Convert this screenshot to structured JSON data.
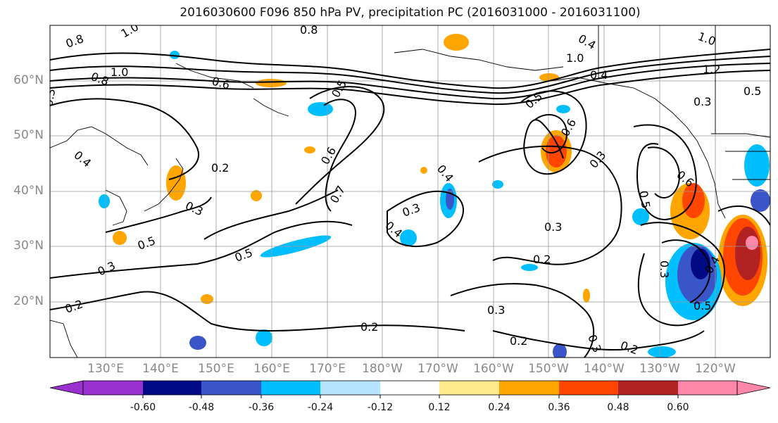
{
  "title": "2016030600 F096 850 hPa PV, precipitation PC (2016031000 - 2016031100)",
  "lat_labels": [
    "60°N",
    "50°N",
    "40°N",
    "30°N",
    "20°N"
  ],
  "lon_labels": [
    "130°E",
    "140°E",
    "150°E",
    "160°E",
    "170°E",
    "180°W",
    "170°W",
    "160°W",
    "150°W",
    "140°W",
    "130°W",
    "120°W"
  ],
  "colorbar": {
    "tick_labels": [
      "-0.60",
      "-0.48",
      "-0.36",
      "-0.24",
      "-0.12",
      "0.12",
      "0.24",
      "0.36",
      "0.48",
      "0.60"
    ],
    "colors": [
      "#9b30d0",
      "#000a85",
      "#3a55c8",
      "#00bfff",
      "#b4e4ff",
      "#ffffff",
      "#ffe98c",
      "#ffa500",
      "#ff4500",
      "#b22222",
      "#ff88aa"
    ]
  },
  "contour_labels": [
    "0.8",
    "1.0",
    "0.8",
    "1.0",
    "0.6",
    "0.5",
    "0.3",
    "0.4",
    "0.2",
    "0.3",
    "0.5",
    "0.3",
    "0.2",
    "0.5",
    "0.6",
    "0.7",
    "0.4",
    "0.3",
    "0.4",
    "0.2",
    "0.5",
    "0.6",
    "0.3",
    "0.4",
    "1.0",
    "1.2",
    "0.5",
    "0.3",
    "0.5",
    "0.6",
    "0.3",
    "0.2",
    "0.3",
    "0.2",
    "0.3",
    "0.4",
    "0.5",
    "0.2",
    "0.8",
    "0.4",
    "0.3",
    "1.0"
  ]
}
